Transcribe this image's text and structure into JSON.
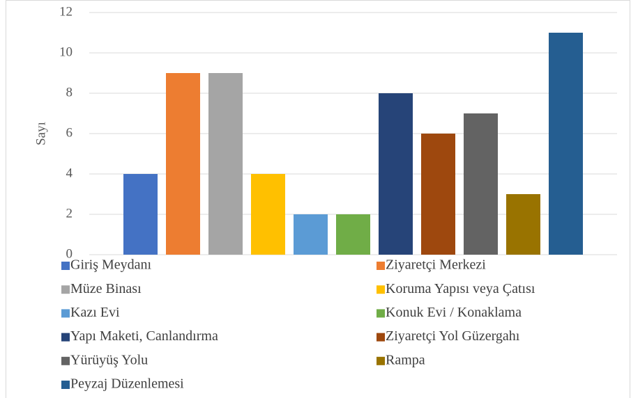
{
  "chart_data": {
    "type": "bar",
    "ylabel": "Sayı",
    "categories": [
      null
    ],
    "series": [
      {
        "name": "Giriş Meydanı",
        "color": "#4472c4",
        "values": [
          4
        ]
      },
      {
        "name": "Ziyaretçi Merkezi",
        "color": "#ed7d31",
        "values": [
          9
        ]
      },
      {
        "name": "Müze Binası",
        "color": "#a5a5a5",
        "values": [
          9
        ]
      },
      {
        "name": "Koruma Yapısı veya Çatısı",
        "color": "#ffc000",
        "values": [
          4
        ]
      },
      {
        "name": "Kazı Evi",
        "color": "#5b9bd5",
        "values": [
          2
        ]
      },
      {
        "name": "Konuk Evi / Konaklama",
        "color": "#70ad47",
        "values": [
          2
        ]
      },
      {
        "name": "Yapı Maketi, Canlandırma",
        "color": "#264478",
        "values": [
          8
        ]
      },
      {
        "name": "Ziyaretçi Yol Güzergahı",
        "color": "#9e480e",
        "values": [
          6
        ]
      },
      {
        "name": "Yürüyüş Yolu",
        "color": "#636363",
        "values": [
          7
        ]
      },
      {
        "name": "Rampa",
        "color": "#997300",
        "values": [
          3
        ]
      },
      {
        "name": "Peyzaj Düzenlemesi",
        "color": "#255e91",
        "values": [
          11
        ]
      }
    ],
    "ylim": [
      0,
      12
    ],
    "yticks": [
      0,
      2,
      4,
      6,
      8,
      10,
      12
    ],
    "grid": true,
    "legend": "bottom"
  }
}
